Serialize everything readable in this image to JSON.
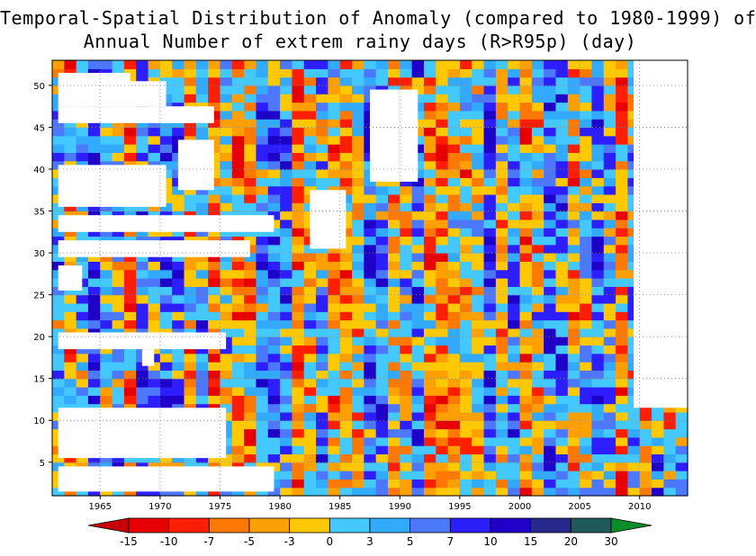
{
  "chart_data": {
    "type": "heatmap",
    "title": "Temporal-Spatial Distribution of Anomaly (compared to 1980-1999) of",
    "subtitle": "Annual Number of extrem rainy days (R>R95p) (day)",
    "xlabel": "",
    "ylabel": "",
    "xlim": [
      1961,
      2014
    ],
    "ylim": [
      1,
      53
    ],
    "x_ticks": [
      1965,
      1970,
      1975,
      1980,
      1985,
      1990,
      1995,
      2000,
      2005,
      2010
    ],
    "y_ticks": [
      5,
      10,
      15,
      20,
      25,
      30,
      35,
      40,
      45,
      50
    ],
    "grid": true,
    "colorbar": {
      "levels": [
        "-15",
        "-10",
        "-7",
        "-5",
        "-3",
        "0",
        "3",
        "5",
        "7",
        "10",
        "15",
        "20",
        "30"
      ],
      "colors": [
        "#c80000",
        "#e60000",
        "#ff1e00",
        "#ff7800",
        "#ffa000",
        "#ffc800",
        "#43c8ff",
        "#32aaff",
        "#4b78ff",
        "#2d1eff",
        "#1e00c8",
        "#28288c",
        "#1e5a5a",
        "#0a8c2d"
      ],
      "placement": "bottom"
    },
    "missing_blocks": [
      {
        "x": [
          1962,
          1967
        ],
        "y": [
          50,
          51
        ]
      },
      {
        "x": [
          1962,
          1970
        ],
        "y": [
          48,
          50
        ]
      },
      {
        "x": [
          1962,
          1974
        ],
        "y": [
          46,
          47
        ]
      },
      {
        "x": [
          1972,
          1974
        ],
        "y": [
          38,
          43
        ]
      },
      {
        "x": [
          1962,
          1970
        ],
        "y": [
          36,
          40
        ]
      },
      {
        "x": [
          1962,
          1979
        ],
        "y": [
          33,
          34
        ]
      },
      {
        "x": [
          1962,
          1977
        ],
        "y": [
          30,
          31
        ]
      },
      {
        "x": [
          1962,
          1963
        ],
        "y": [
          26,
          28
        ]
      },
      {
        "x": [
          1962,
          1975
        ],
        "y": [
          19,
          20
        ]
      },
      {
        "x": [
          1969,
          1969
        ],
        "y": [
          17,
          18
        ]
      },
      {
        "x": [
          1962,
          1975
        ],
        "y": [
          6,
          11
        ]
      },
      {
        "x": [
          1962,
          1979
        ],
        "y": [
          2,
          4
        ]
      },
      {
        "x": [
          1983,
          1985
        ],
        "y": [
          31,
          37
        ]
      },
      {
        "x": [
          1988,
          1991
        ],
        "y": [
          39,
          49
        ]
      },
      {
        "x": [
          2010,
          2014
        ],
        "y": [
          12,
          53
        ]
      }
    ]
  }
}
